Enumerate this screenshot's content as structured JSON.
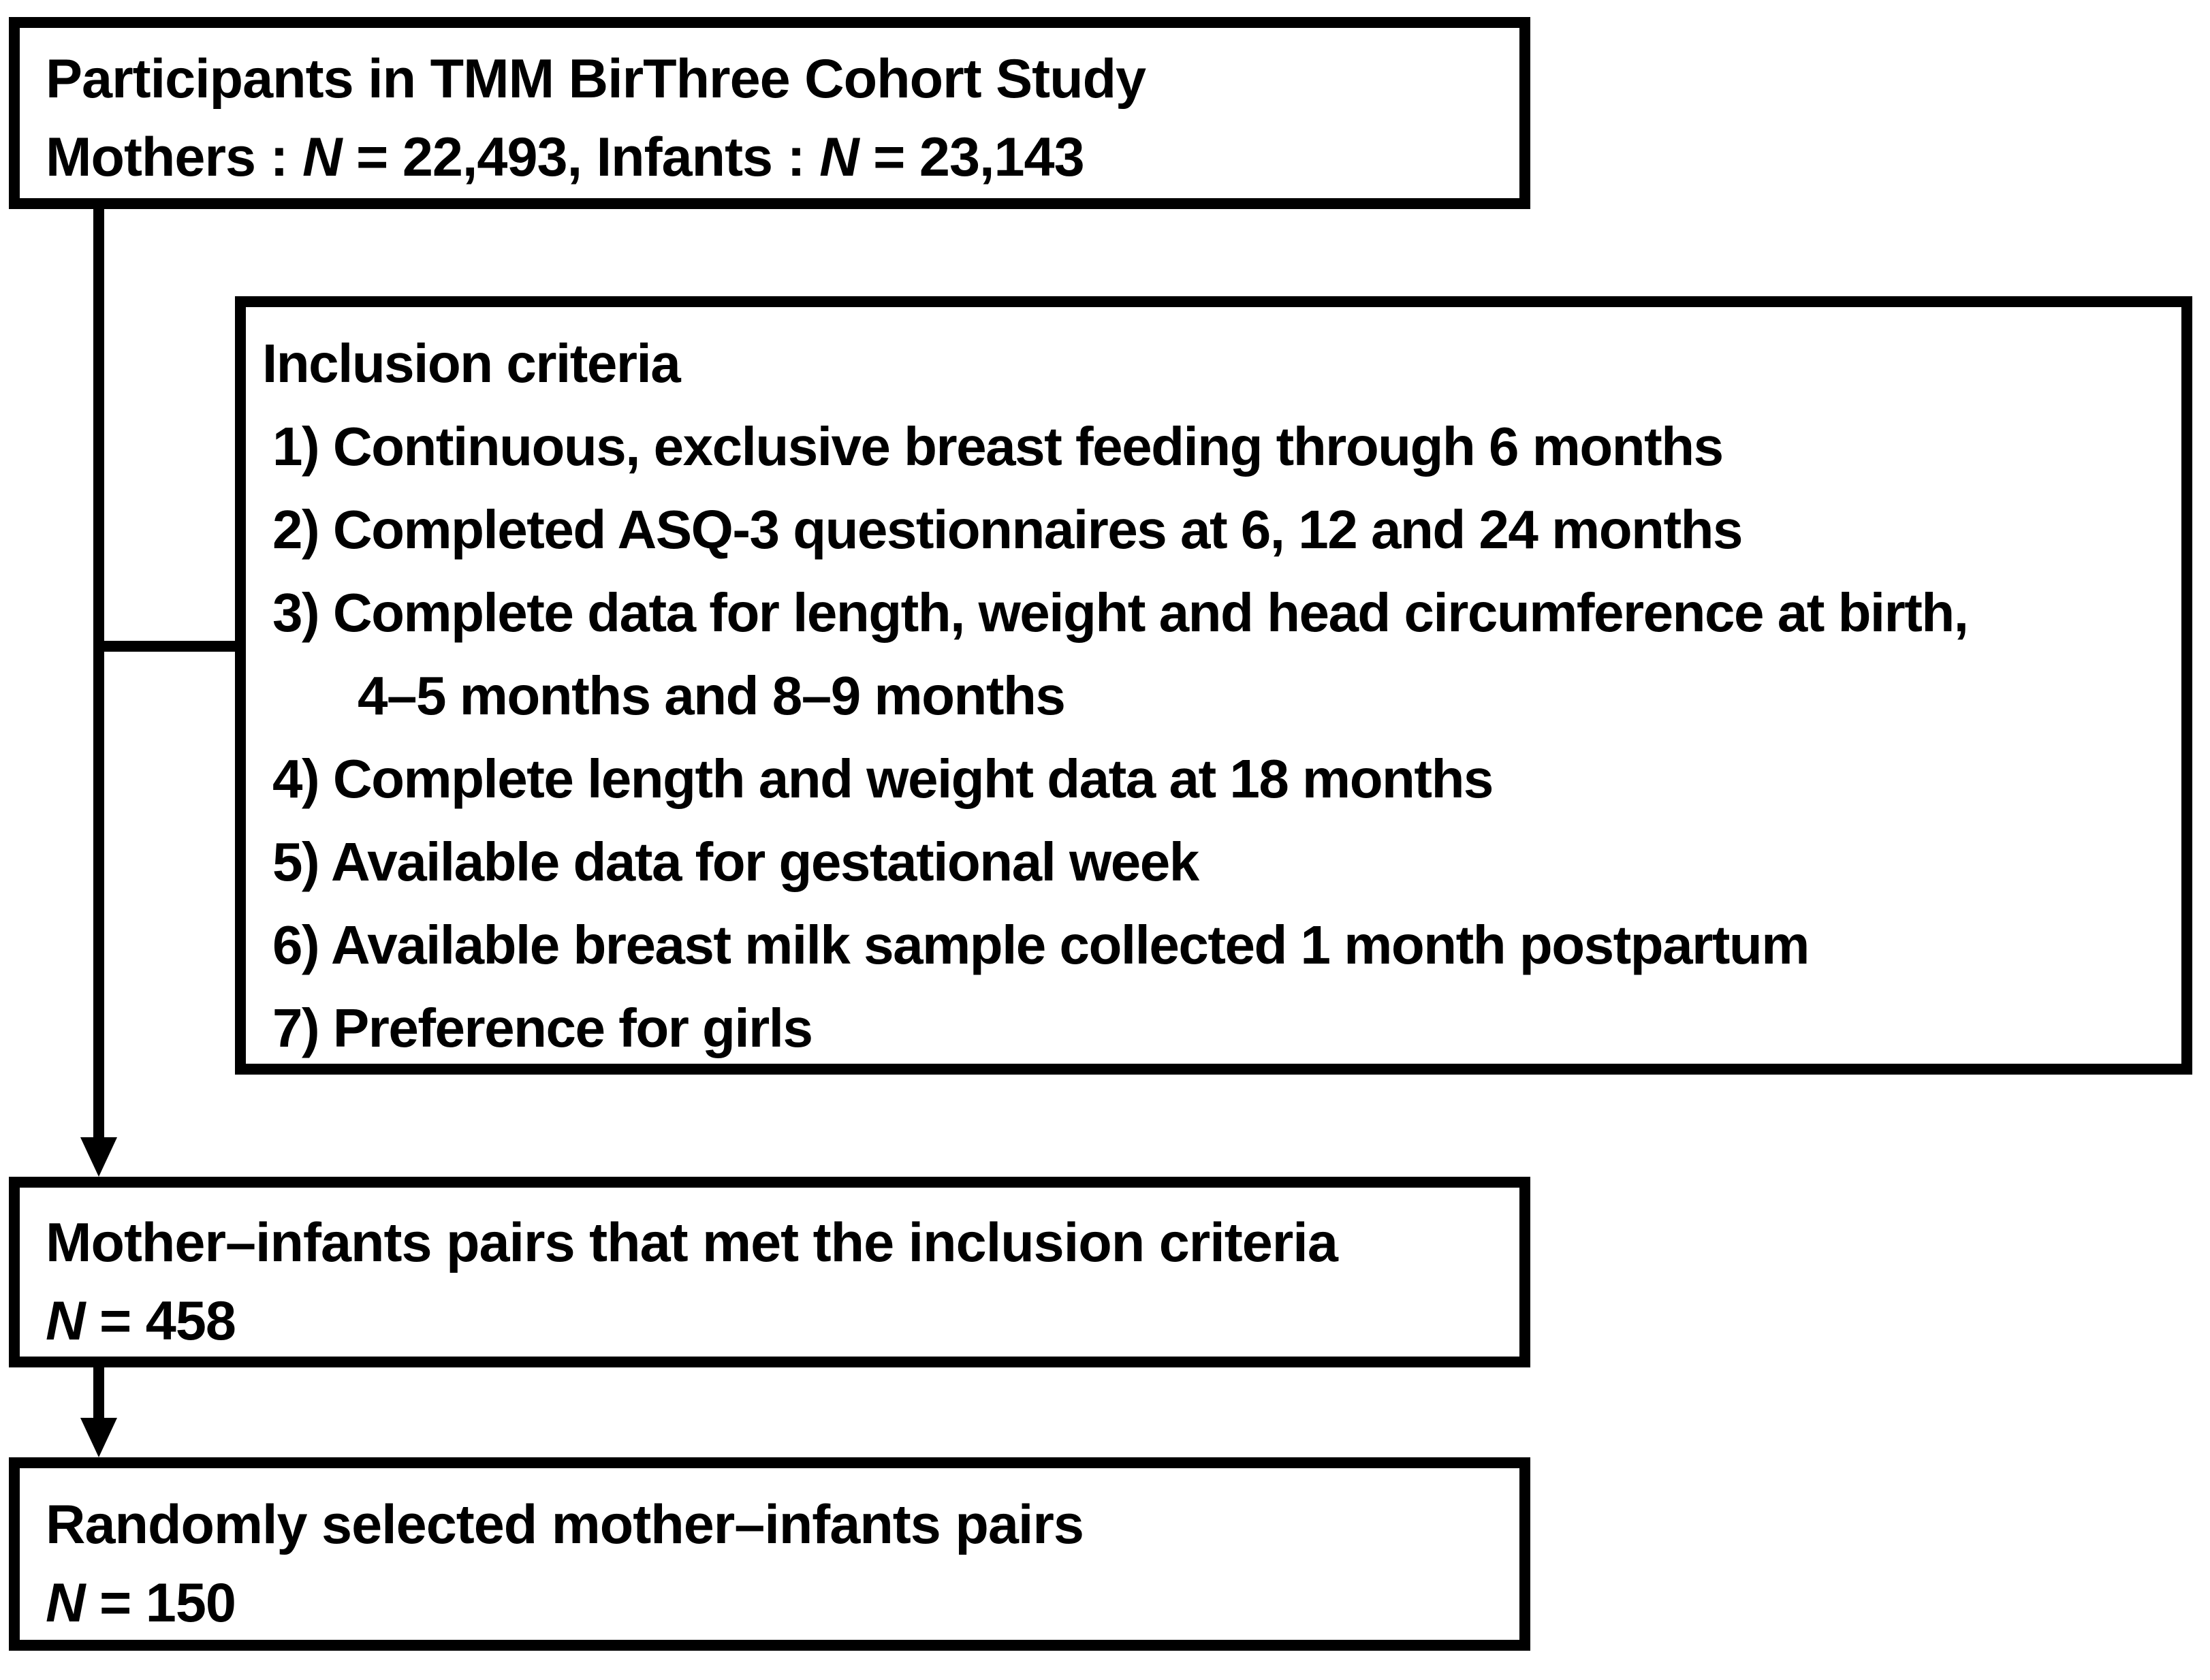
{
  "figure": {
    "background_color": "#ffffff",
    "line_color": "#000000"
  },
  "box_cohort": {
    "title": "Participants in TMM BirThree Cohort Study",
    "mothers_label": "Mothers : ",
    "n_symbol": "N",
    "mothers_value": " = 22,493, ",
    "infants_label": "Infants : ",
    "infants_value": " = 23,143"
  },
  "inclusion": {
    "heading": "Inclusion criteria",
    "items": [
      "1) Continuous, exclusive breast feeding through 6 months",
      "2) Completed ASQ-3 questionnaires at 6, 12 and 24 months",
      "3) Complete data for length, weight and head circumference at birth,",
      "4–5 months and 8–9 months",
      "4) Complete length and weight data at 18 months",
      "5) Available data for gestational week",
      "6) Available breast milk sample collected 1 month postpartum",
      "7) Preference for girls"
    ]
  },
  "box_met": {
    "title": "Mother–infants pairs that met the inclusion criteria",
    "n_symbol": "N",
    "n_value": " = 458"
  },
  "box_selected": {
    "title": "Randomly selected mother–infants pairs",
    "n_symbol": "N",
    "n_value": " = 150"
  }
}
